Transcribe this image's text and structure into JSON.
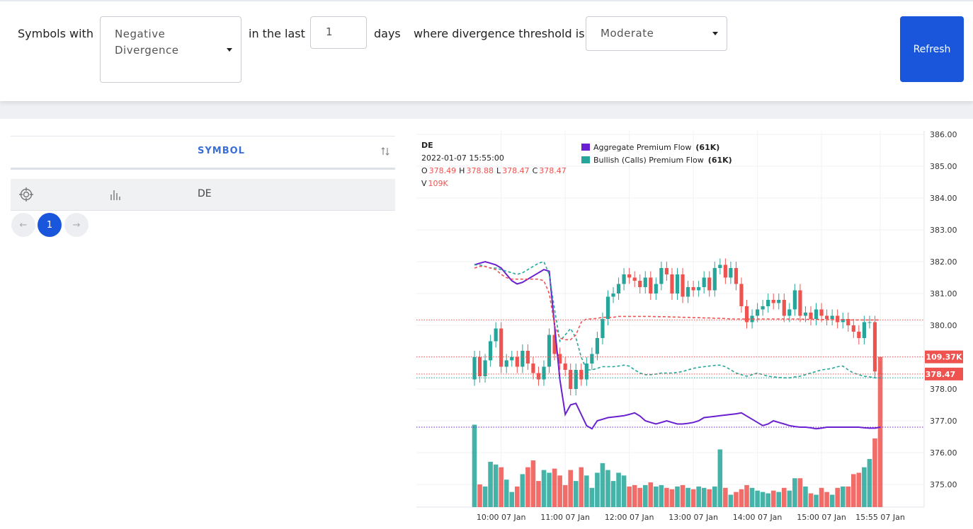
{
  "filters": {
    "prefix": "Symbols with",
    "divergence": "Negative Divergence",
    "in_last": "in the last",
    "days_value": "1",
    "days": "days",
    "threshold_label": "where divergence threshold is",
    "threshold": "Moderate",
    "button": "Refresh"
  },
  "table": {
    "header": "SYMBOL",
    "rows": [
      [
        "DE"
      ]
    ]
  },
  "pagination": {
    "current": 1
  },
  "chart_data": {
    "type": "candlestick",
    "symbol": "DE",
    "datetime": "2022-01-07 15:55:00",
    "ohlc_keys": [
      "O",
      "H",
      "L",
      "C",
      "V"
    ],
    "legend_volume_label": "109K",
    "current_volume_label": "109.37K",
    "up_color": "#26a69a",
    "down_color": "#ef5350",
    "x": [
      "09:35",
      "09:40",
      "09:45",
      "09:50",
      "09:55",
      "10:00",
      "10:05",
      "10:10",
      "10:15",
      "10:20",
      "10:25",
      "10:30",
      "10:35",
      "10:40",
      "10:45",
      "10:50",
      "10:55",
      "11:00",
      "11:05",
      "11:10",
      "11:15",
      "11:20",
      "11:25",
      "11:30",
      "11:35",
      "11:40",
      "11:45",
      "11:50",
      "11:55",
      "12:00",
      "12:05",
      "12:10",
      "12:15",
      "12:20",
      "12:25",
      "12:30",
      "12:35",
      "12:40",
      "12:45",
      "12:50",
      "12:55",
      "13:00",
      "13:05",
      "13:10",
      "13:15",
      "13:20",
      "13:25",
      "13:30",
      "13:35",
      "13:40",
      "13:45",
      "13:50",
      "13:55",
      "14:00",
      "14:05",
      "14:10",
      "14:15",
      "14:20",
      "14:25",
      "14:30",
      "14:35",
      "14:40",
      "14:45",
      "14:50",
      "14:55",
      "15:00",
      "15:05",
      "15:10",
      "15:15",
      "15:20",
      "15:25",
      "15:30",
      "15:35",
      "15:40",
      "15:45",
      "15:50",
      "15:55"
    ],
    "open": [
      378.3,
      379.0,
      378.4,
      378.9,
      379.5,
      379.9,
      378.7,
      378.9,
      379.0,
      378.7,
      379.2,
      378.8,
      378.5,
      378.3,
      378.7,
      379.7,
      379.1,
      378.8,
      378.6,
      378.0,
      378.6,
      378.3,
      378.8,
      379.1,
      379.6,
      380.2,
      380.9,
      381.0,
      381.3,
      381.6,
      381.5,
      381.4,
      381.2,
      381.5,
      381.0,
      381.3,
      381.8,
      381.6,
      381.0,
      381.6,
      380.9,
      381.2,
      381.1,
      381.2,
      381.5,
      381.1,
      381.8,
      381.9,
      381.5,
      381.8,
      381.3,
      380.6,
      380.1,
      380.3,
      380.5,
      380.6,
      380.8,
      380.7,
      380.8,
      380.3,
      380.5,
      381.1,
      380.3,
      380.4,
      380.2,
      380.5,
      380.3,
      380.2,
      380.3,
      380.1,
      380.2,
      380.0,
      379.8,
      379.6,
      380.1,
      380.1,
      378.49
    ],
    "high": [
      379.2,
      379.2,
      379.1,
      379.7,
      380.1,
      380.1,
      379.1,
      379.2,
      379.2,
      379.4,
      379.4,
      379.0,
      378.7,
      378.9,
      379.9,
      379.9,
      379.3,
      379.0,
      378.8,
      378.8,
      378.8,
      379.0,
      379.3,
      379.8,
      380.4,
      381.1,
      381.2,
      381.5,
      381.8,
      381.8,
      381.7,
      381.6,
      381.7,
      381.7,
      381.5,
      382.0,
      382.0,
      381.8,
      381.8,
      381.8,
      381.4,
      381.4,
      381.4,
      381.7,
      381.7,
      382.0,
      382.1,
      382.1,
      382.0,
      382.0,
      381.5,
      380.8,
      380.5,
      380.7,
      380.8,
      381.0,
      381.0,
      381.0,
      381.0,
      380.7,
      381.3,
      381.3,
      380.6,
      380.6,
      380.7,
      380.7,
      380.5,
      380.5,
      380.5,
      380.4,
      380.4,
      380.2,
      380.0,
      380.3,
      380.3,
      380.3,
      378.88
    ],
    "low": [
      378.1,
      378.2,
      378.2,
      378.7,
      379.3,
      378.5,
      378.5,
      378.7,
      378.5,
      378.5,
      378.6,
      378.3,
      378.1,
      378.1,
      378.5,
      378.9,
      378.6,
      378.4,
      377.8,
      377.8,
      378.1,
      378.1,
      378.6,
      378.9,
      379.4,
      380.0,
      380.7,
      380.8,
      381.1,
      381.3,
      381.2,
      381.0,
      381.0,
      380.8,
      380.8,
      381.1,
      381.4,
      380.8,
      380.8,
      380.7,
      380.7,
      380.9,
      380.9,
      381.0,
      380.9,
      380.9,
      381.6,
      381.3,
      381.3,
      381.1,
      380.4,
      379.9,
      379.9,
      380.1,
      380.3,
      380.4,
      380.5,
      380.5,
      380.1,
      380.1,
      380.3,
      380.1,
      380.1,
      380.0,
      380.0,
      380.1,
      380.0,
      380.0,
      379.9,
      379.9,
      379.8,
      379.6,
      379.4,
      379.4,
      379.9,
      378.35,
      378.47
    ],
    "close": [
      379.0,
      378.4,
      378.9,
      379.5,
      379.9,
      378.7,
      378.9,
      379.0,
      378.7,
      379.2,
      378.8,
      378.5,
      378.3,
      378.7,
      379.7,
      379.1,
      378.8,
      378.6,
      378.0,
      378.6,
      378.3,
      378.8,
      379.1,
      379.6,
      380.2,
      380.9,
      381.0,
      381.3,
      381.6,
      381.5,
      381.4,
      381.2,
      381.5,
      381.0,
      381.3,
      381.8,
      381.6,
      381.0,
      381.6,
      380.9,
      381.2,
      381.1,
      381.2,
      381.5,
      381.1,
      381.8,
      381.9,
      381.5,
      381.8,
      381.3,
      380.6,
      380.1,
      380.3,
      380.5,
      380.6,
      380.8,
      380.7,
      380.8,
      380.3,
      380.5,
      381.1,
      380.3,
      380.4,
      380.2,
      380.5,
      380.3,
      380.2,
      380.3,
      380.1,
      380.2,
      380.0,
      379.8,
      379.6,
      380.1,
      380.1,
      378.55,
      378.47
    ],
    "volume": [
      60,
      16.5,
      15,
      33,
      31,
      29,
      20,
      11,
      15,
      24,
      29,
      34,
      19,
      27,
      25,
      28,
      23,
      16,
      27,
      19,
      29,
      23,
      14,
      25,
      32,
      27,
      19,
      25,
      23,
      15,
      16,
      14,
      16,
      18,
      15,
      16,
      14,
      13,
      15,
      16,
      14,
      13,
      15,
      14,
      13,
      15,
      42,
      14,
      9,
      11,
      13,
      16,
      14,
      12,
      11,
      10,
      12,
      11,
      14,
      12,
      21,
      21,
      15,
      10,
      9,
      14,
      11,
      9,
      14,
      15,
      15,
      24,
      25,
      29,
      35,
      50,
      109.37
    ],
    "series": [
      {
        "name": "Aggregate Premium Flow",
        "legend_value": "(61K)",
        "color": "#6a1fd0",
        "dashed": false,
        "values": [
          381.9,
          381.95,
          382.0,
          381.95,
          381.9,
          381.8,
          381.6,
          381.4,
          381.3,
          381.35,
          381.45,
          381.55,
          381.65,
          381.75,
          381.7,
          380.0,
          378.3,
          377.2,
          377.5,
          377.55,
          377.2,
          376.85,
          376.75,
          377.0,
          377.05,
          377.1,
          377.12,
          377.14,
          377.16,
          377.2,
          377.25,
          377.15,
          377.0,
          376.95,
          376.9,
          376.95,
          377.0,
          376.95,
          376.9,
          376.9,
          376.92,
          376.95,
          377.0,
          377.1,
          377.12,
          377.14,
          377.16,
          377.18,
          377.2,
          377.22,
          377.25,
          377.15,
          377.05,
          376.95,
          376.85,
          376.9,
          377.0,
          376.95,
          376.9,
          376.85,
          376.82,
          376.8,
          376.8,
          376.78,
          376.75,
          376.77,
          376.8,
          376.8,
          376.8,
          376.8,
          376.8,
          376.8,
          376.8,
          376.78,
          376.77,
          376.77,
          376.8
        ]
      },
      {
        "name": "Bullish (Calls) Premium Flow",
        "legend_value": "(61K)",
        "color": "#26a69a",
        "dashed": true,
        "values": [
          381.9,
          381.9,
          381.85,
          381.8,
          381.8,
          381.75,
          381.7,
          381.65,
          381.6,
          381.65,
          381.75,
          381.85,
          381.95,
          382.0,
          381.6,
          380.5,
          379.5,
          379.7,
          379.9,
          379.6,
          379.0,
          378.6,
          378.6,
          378.65,
          378.7,
          378.7,
          378.7,
          378.72,
          378.75,
          378.72,
          378.6,
          378.5,
          378.45,
          378.45,
          378.47,
          378.5,
          378.5,
          378.5,
          378.52,
          378.55,
          378.6,
          378.65,
          378.68,
          378.7,
          378.72,
          378.74,
          378.75,
          378.7,
          378.6,
          378.5,
          378.45,
          378.4,
          378.45,
          378.5,
          378.45,
          378.4,
          378.38,
          378.36,
          378.35,
          378.35,
          378.38,
          378.4,
          378.45,
          378.5,
          378.55,
          378.6,
          378.62,
          378.65,
          378.7,
          378.72,
          378.6,
          378.5,
          378.45,
          378.4,
          378.38,
          378.35,
          378.35
        ]
      },
      {
        "color": "#ef5350",
        "dashed": true,
        "values": [
          381.8,
          381.85,
          381.85,
          381.8,
          381.75,
          381.6,
          381.5,
          381.45,
          381.45,
          381.45,
          381.45,
          381.45,
          381.45,
          381.4,
          381.0,
          380.0,
          379.6,
          379.55,
          379.55,
          379.7,
          380.1,
          380.2,
          380.2,
          380.22,
          380.25,
          380.25,
          380.25,
          380.28,
          380.28,
          380.28,
          380.28,
          380.28,
          380.28,
          380.28,
          380.27,
          380.27,
          380.27,
          380.26,
          380.26,
          380.25,
          380.25,
          380.24,
          380.24,
          380.23,
          380.23,
          380.22,
          380.22,
          380.21,
          380.2,
          380.2,
          380.2,
          380.2,
          380.2,
          380.2,
          380.2,
          380.2,
          380.2,
          380.2,
          380.2,
          380.2,
          380.2,
          380.2,
          380.19,
          380.19,
          380.19,
          380.18,
          380.18,
          380.18,
          380.18,
          380.18,
          380.17,
          380.17,
          380.17,
          380.17,
          380.17,
          380.17,
          380.17
        ]
      }
    ],
    "ylim": [
      374.29,
      386.11
    ],
    "yticks": [
      {
        "value": 375,
        "label": "375.00"
      },
      {
        "value": 376,
        "label": "376.00"
      },
      {
        "value": 377,
        "label": "377.00"
      },
      {
        "value": 378,
        "label": "378.00"
      },
      {
        "value": 379,
        "label": "379.00"
      },
      {
        "value": 380,
        "label": "380.00"
      },
      {
        "value": 381,
        "label": "381.00"
      },
      {
        "value": 382,
        "label": "382.00"
      },
      {
        "value": 383,
        "label": "383.00"
      },
      {
        "value": 384,
        "label": "384.00"
      },
      {
        "value": 385,
        "label": "385.00"
      },
      {
        "value": 386,
        "label": "386.00"
      }
    ],
    "volume_lim": [
      0,
      274
    ],
    "xticks": [
      {
        "value": "10:00",
        "label": "10:00 07 Jan"
      },
      {
        "value": "11:00",
        "label": "11:00 07 Jan"
      },
      {
        "value": "12:00",
        "label": "12:00 07 Jan"
      },
      {
        "value": "13:00",
        "label": "13:00 07 Jan"
      },
      {
        "value": "14:00",
        "label": "14:00 07 Jan"
      },
      {
        "value": "15:00",
        "label": "15:00 07 Jan"
      },
      {
        "value": "15:55",
        "label": "15:55 07 Jan"
      }
    ],
    "grid": true
  }
}
